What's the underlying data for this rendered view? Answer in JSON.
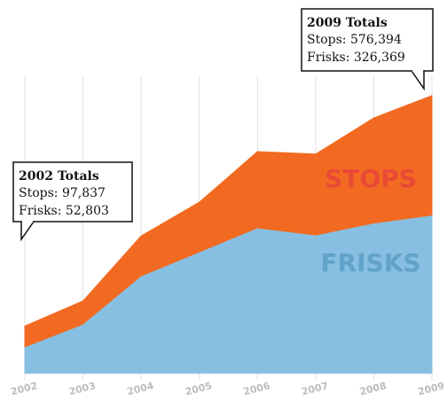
{
  "chart_data": {
    "type": "area",
    "categories": [
      "2002",
      "2003",
      "2004",
      "2005",
      "2006",
      "2007",
      "2008",
      "2009"
    ],
    "series": [
      {
        "name": "STOPS",
        "color": "#f26a21",
        "label_color": "#e8453a",
        "values": [
          97837,
          150000,
          285000,
          355000,
          460000,
          455000,
          530000,
          576394
        ]
      },
      {
        "name": "FRISKS",
        "color": "#86bfe2",
        "label_color": "#5c9fc6",
        "values": [
          52803,
          100000,
          200000,
          250000,
          300000,
          285000,
          310000,
          326369
        ]
      }
    ],
    "ylim": [
      0,
      600000
    ],
    "grid": true,
    "annotations": [
      {
        "title": "2002 Totals",
        "lines": [
          "Stops: 97,837",
          "Frisks: 52,803"
        ]
      },
      {
        "title": "2009 Totals",
        "lines": [
          "Stops: 576,394",
          "Frisks: 326,369"
        ]
      }
    ]
  }
}
